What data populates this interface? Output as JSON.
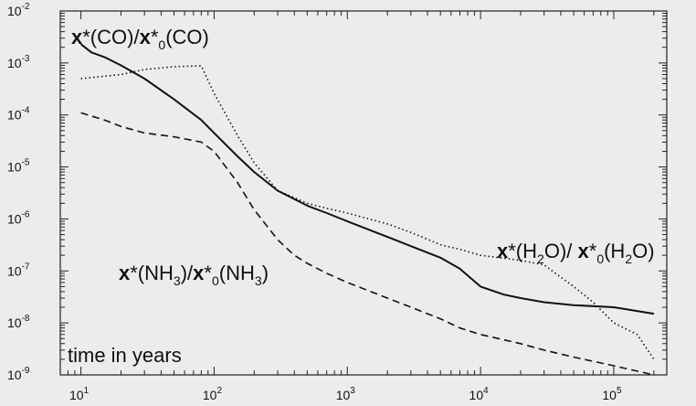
{
  "chart_data": {
    "type": "line",
    "x_scale": "log",
    "y_scale": "log",
    "xlim": [
      7,
      250000
    ],
    "ylim": [
      1e-09,
      0.01
    ],
    "x_ticks": [
      {
        "value": 10,
        "base": "10",
        "exp": "1"
      },
      {
        "value": 100,
        "base": "10",
        "exp": "2"
      },
      {
        "value": 1000,
        "base": "10",
        "exp": "3"
      },
      {
        "value": 10000,
        "base": "10",
        "exp": "4"
      },
      {
        "value": 100000,
        "base": "10",
        "exp": "5"
      }
    ],
    "y_ticks": [
      {
        "value": 0.01,
        "base": "10",
        "exp": "-2"
      },
      {
        "value": 0.001,
        "base": "10",
        "exp": "-3"
      },
      {
        "value": 0.0001,
        "base": "10",
        "exp": "-4"
      },
      {
        "value": 1e-05,
        "base": "10",
        "exp": "-5"
      },
      {
        "value": 1e-06,
        "base": "10",
        "exp": "-6"
      },
      {
        "value": 1e-07,
        "base": "10",
        "exp": "-7"
      },
      {
        "value": 1e-08,
        "base": "10",
        "exp": "-8"
      },
      {
        "value": 1e-09,
        "base": "10",
        "exp": "-9"
      }
    ],
    "annotation_time": "time in years",
    "series": [
      {
        "style": "solid",
        "label_parts": [
          {
            "t": "x",
            "bold": true
          },
          {
            "t": "*(CO)/"
          },
          {
            "t": "x",
            "bold": true
          },
          {
            "t": "*"
          },
          {
            "t": "0",
            "sub": true
          },
          {
            "t": "(CO)"
          }
        ],
        "x": [
          10,
          12,
          15,
          20,
          30,
          50,
          80,
          100,
          150,
          200,
          300,
          500,
          700,
          1000,
          2000,
          3000,
          5000,
          7000,
          10000,
          15000,
          20000,
          30000,
          50000,
          100000,
          200000
        ],
        "y": [
          0.0023,
          0.0016,
          0.0013,
          0.0009,
          0.0005,
          0.0002,
          8e-05,
          4.5e-05,
          1.6e-05,
          8e-06,
          3.5e-06,
          1.8e-06,
          1.3e-06,
          9e-07,
          4.5e-07,
          3e-07,
          1.8e-07,
          1.1e-07,
          5e-08,
          3.5e-08,
          3e-08,
          2.5e-08,
          2.2e-08,
          2e-08,
          1.5e-08
        ]
      },
      {
        "style": "dotted",
        "label_parts": [
          {
            "t": "x",
            "bold": true
          },
          {
            "t": "*(H"
          },
          {
            "t": "2",
            "sub": true
          },
          {
            "t": "O)/ "
          },
          {
            "t": "x",
            "bold": true
          },
          {
            "t": "*"
          },
          {
            "t": "0",
            "sub": true
          },
          {
            "t": "(H"
          },
          {
            "t": "2",
            "sub": true
          },
          {
            "t": "O)"
          }
        ],
        "x": [
          10,
          20,
          30,
          50,
          80,
          100,
          150,
          200,
          300,
          500,
          700,
          1000,
          2000,
          3000,
          5000,
          7000,
          10000,
          20000,
          30000,
          50000,
          70000,
          100000,
          150000,
          200000
        ],
        "y": [
          0.0005,
          0.0006,
          0.00075,
          0.00085,
          0.00088,
          0.00026,
          4e-05,
          1.2e-05,
          3.5e-06,
          2e-06,
          1.6e-06,
          1.3e-06,
          8e-07,
          5.5e-07,
          3.2e-07,
          2.6e-07,
          2e-07,
          1.6e-07,
          1.3e-07,
          5e-08,
          2.5e-08,
          1e-08,
          6e-09,
          2e-09
        ]
      },
      {
        "style": "dashed",
        "label_parts": [
          {
            "t": "x",
            "bold": true
          },
          {
            "t": "*(NH"
          },
          {
            "t": "3",
            "sub": true
          },
          {
            "t": ")/"
          },
          {
            "t": "x",
            "bold": true
          },
          {
            "t": "*"
          },
          {
            "t": "0",
            "sub": true
          },
          {
            "t": "(NH"
          },
          {
            "t": "3",
            "sub": true
          },
          {
            "t": ")"
          }
        ],
        "x": [
          10,
          15,
          20,
          30,
          50,
          80,
          100,
          150,
          200,
          300,
          400,
          500,
          700,
          1000,
          2000,
          3000,
          5000,
          7000,
          10000,
          20000,
          30000,
          50000,
          100000,
          200000
        ],
        "y": [
          0.00011,
          8e-05,
          6e-05,
          4.5e-05,
          3.8e-05,
          3e-05,
          2e-05,
          5e-06,
          1.5e-06,
          4e-07,
          2e-07,
          1.4e-07,
          9e-08,
          6e-08,
          3e-08,
          2e-08,
          1.2e-08,
          8e-09,
          6e-09,
          4e-09,
          3e-09,
          2.2e-09,
          1.5e-09,
          1e-09
        ]
      }
    ]
  }
}
